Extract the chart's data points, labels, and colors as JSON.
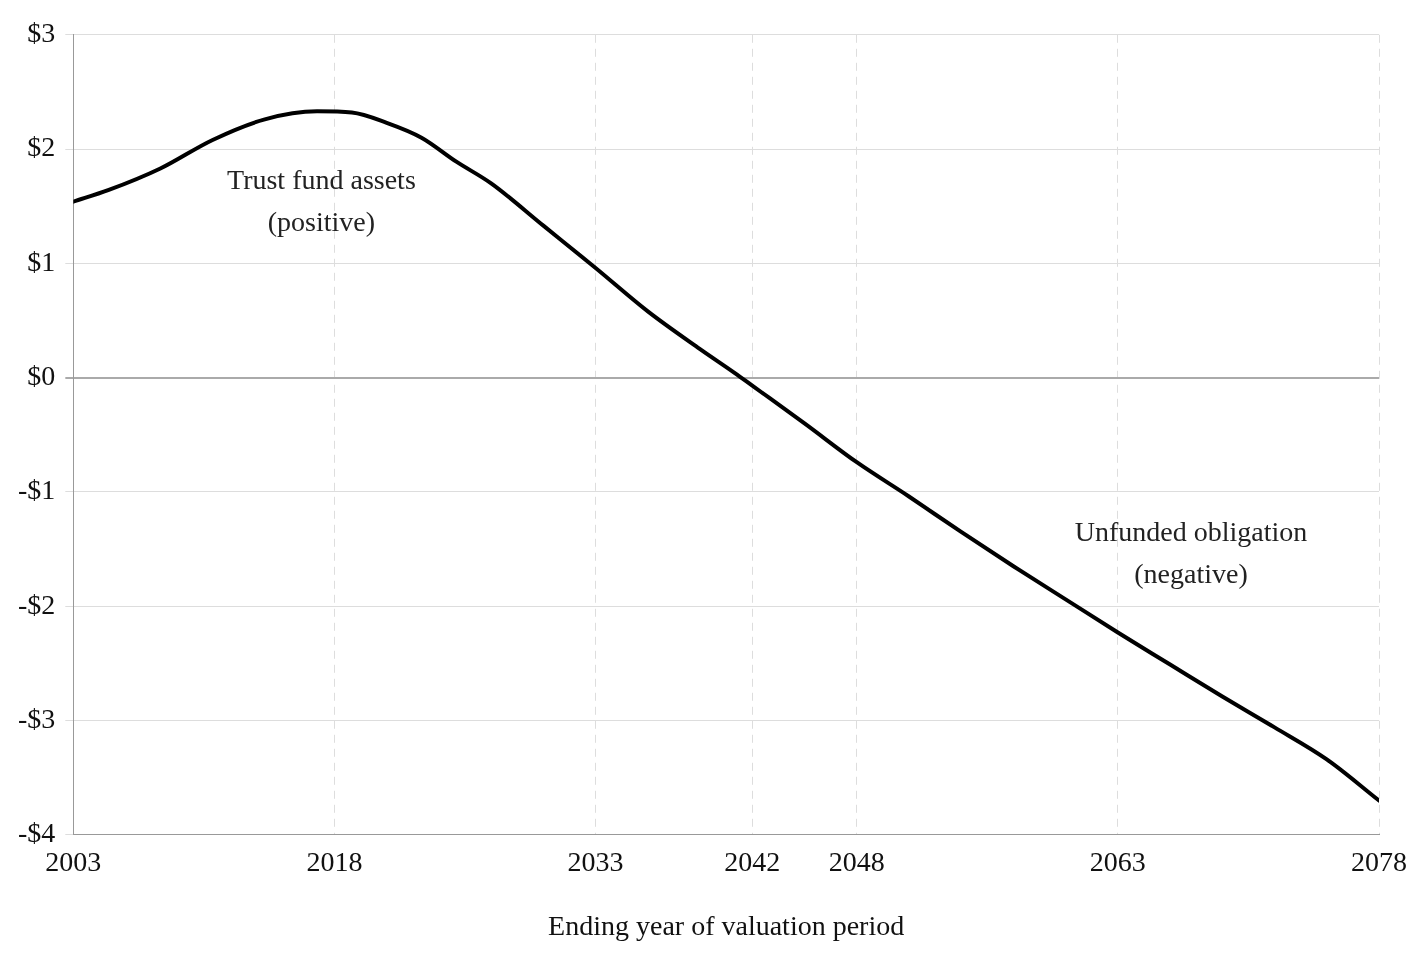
{
  "chart_data": {
    "type": "line",
    "xlabel": "Ending year of valuation period",
    "x": [
      2003,
      2005,
      2008,
      2011,
      2014,
      2017,
      2019,
      2021,
      2023,
      2025,
      2027,
      2030,
      2033,
      2036,
      2039,
      2041,
      2042,
      2045,
      2048,
      2051,
      2054,
      2057,
      2060,
      2063,
      2066,
      2069,
      2072,
      2075,
      2078
    ],
    "series": [
      {
        "color": "#000000",
        "values": [
          1.54,
          1.64,
          1.83,
          2.08,
          2.26,
          2.33,
          2.32,
          2.23,
          2.1,
          1.89,
          1.7,
          1.33,
          0.96,
          0.58,
          0.25,
          0.04,
          -0.07,
          -0.4,
          -0.74,
          -1.04,
          -1.35,
          -1.65,
          -1.94,
          -2.23,
          -2.51,
          -2.79,
          -3.06,
          -3.34,
          -3.7
        ]
      }
    ],
    "xlim": [
      2003,
      2078
    ],
    "xticks": [
      2003,
      2018,
      2033,
      2042,
      2048,
      2063,
      2078
    ],
    "ylim": [
      -4,
      3
    ],
    "yticks": [
      {
        "value": -4,
        "label": "-$4"
      },
      {
        "value": -3,
        "label": "-$3"
      },
      {
        "value": -2,
        "label": "-$2"
      },
      {
        "value": -1,
        "label": "-$1"
      },
      {
        "value": 0,
        "label": "$0"
      },
      {
        "value": 1,
        "label": "$1"
      },
      {
        "value": 2,
        "label": "$2"
      },
      {
        "value": 3,
        "label": "$3"
      }
    ],
    "annotations": [
      "Trust fund assets\n(positive)",
      "Unfunded obligation\n(negative)"
    ],
    "grid": true,
    "legend": false,
    "marker": "none",
    "line_style": "solid"
  }
}
